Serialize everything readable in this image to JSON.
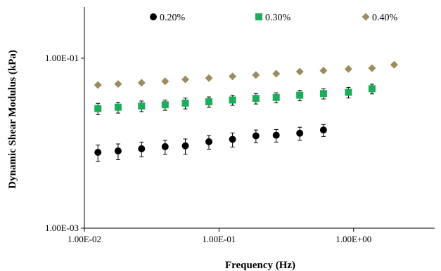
{
  "chart_data": {
    "type": "scatter",
    "title": "",
    "xlabel": "Frequency (Hz)",
    "ylabel": "Dynamic Shear Modulus (kPa)",
    "x_scale": "log",
    "y_scale": "log",
    "xlim": [
      0.01,
      4.0
    ],
    "ylim": [
      0.001,
      0.4
    ],
    "x_ticks": [
      {
        "value": 0.01,
        "label": "1.00E-02"
      },
      {
        "value": 0.1,
        "label": "1.00E-01"
      },
      {
        "value": 1.0,
        "label": "1.00E+00"
      }
    ],
    "y_ticks": [
      {
        "value": 0.001,
        "label": "1.00E-03"
      },
      {
        "value": 0.1,
        "label": "1.00E-01"
      }
    ],
    "grid": false,
    "legend_position": "top",
    "series": [
      {
        "name": "0.20%",
        "marker": "circle",
        "color": "#000000",
        "x": [
          0.0126,
          0.0178,
          0.0266,
          0.0398,
          0.0562,
          0.0841,
          0.126,
          0.188,
          0.266,
          0.398,
          0.597
        ],
        "y": [
          0.0078,
          0.0081,
          0.0086,
          0.0091,
          0.0093,
          0.0104,
          0.0111,
          0.0122,
          0.0124,
          0.0131,
          0.0143
        ],
        "err": [
          0.0017,
          0.0017,
          0.0017,
          0.0017,
          0.0019,
          0.0019,
          0.0021,
          0.0021,
          0.0021,
          0.0023,
          0.0023
        ]
      },
      {
        "name": "0.30%",
        "marker": "square",
        "color": "#1aad5b",
        "x": [
          0.0126,
          0.0178,
          0.0266,
          0.0398,
          0.0562,
          0.0841,
          0.126,
          0.188,
          0.266,
          0.398,
          0.597,
          0.915,
          1.37
        ],
        "y": [
          0.0255,
          0.0265,
          0.0274,
          0.0283,
          0.0296,
          0.0307,
          0.0322,
          0.0336,
          0.0345,
          0.0367,
          0.0383,
          0.0397,
          0.0437
        ],
        "err": [
          0.0039,
          0.0039,
          0.0039,
          0.0039,
          0.0043,
          0.0043,
          0.0043,
          0.0047,
          0.0047,
          0.0052,
          0.0052,
          0.0057,
          0.0057
        ]
      },
      {
        "name": "0.40%",
        "marker": "diamond",
        "color": "#9c8b5e",
        "x": [
          0.0126,
          0.0178,
          0.0266,
          0.0398,
          0.0562,
          0.0841,
          0.126,
          0.188,
          0.266,
          0.398,
          0.597,
          0.915,
          1.37,
          2.0
        ],
        "y": [
          0.0483,
          0.0497,
          0.0514,
          0.0535,
          0.0562,
          0.0583,
          0.0612,
          0.0634,
          0.0657,
          0.0696,
          0.0716,
          0.0746,
          0.0763,
          0.0837
        ],
        "err": [
          0,
          0,
          0,
          0,
          0,
          0,
          0,
          0,
          0,
          0,
          0,
          0,
          0,
          0
        ]
      }
    ]
  }
}
